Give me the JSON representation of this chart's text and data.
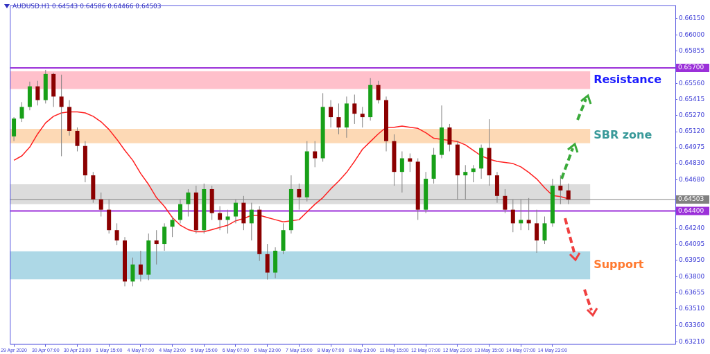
{
  "chart_data": {
    "type": "candlestick",
    "title": "AUDUSD.H1  0.64543 0.64586 0.64466 0.64503",
    "categories": [
      "29 Apr 2020",
      null,
      null,
      null,
      "30 Apr 07:00",
      null,
      null,
      null,
      "30 Apr 23:00",
      null,
      null,
      null,
      "1 May 15:00",
      null,
      null,
      null,
      "4 May 07:00",
      null,
      null,
      null,
      "4 May 23:00",
      null,
      null,
      null,
      "5 May 15:00",
      null,
      null,
      null,
      "6 May 07:00",
      null,
      null,
      null,
      "6 May 23:00",
      null,
      null,
      null,
      "7 May 15:00",
      null,
      null,
      null,
      "8 May 07:00",
      null,
      null,
      null,
      "8 May 23:00",
      null,
      null,
      null,
      "11 May 15:00",
      null,
      null,
      null,
      "12 May 07:00",
      null,
      null,
      null,
      "12 May 23:00",
      null,
      null,
      null,
      "13 May 15:00",
      null,
      null,
      null,
      "14 May 07:00",
      null,
      null,
      null,
      "14 May 23:00",
      null,
      null,
      null,
      null,
      null,
      null,
      null,
      null,
      null,
      null,
      null,
      null,
      null,
      null,
      null
    ],
    "ohlc": [
      [
        0.65077,
        0.65252,
        0.65034,
        0.65239
      ],
      [
        0.65239,
        0.65389,
        0.65208,
        0.65345
      ],
      [
        0.65345,
        0.65575,
        0.65314,
        0.65532
      ],
      [
        0.65532,
        0.65582,
        0.65358,
        0.65407
      ],
      [
        0.65407,
        0.65681,
        0.65376,
        0.65644
      ],
      [
        0.65644,
        0.65656,
        0.65345,
        0.65439
      ],
      [
        0.65439,
        0.65638,
        0.64897,
        0.65345
      ],
      [
        0.65345,
        0.65407,
        0.65084,
        0.65127
      ],
      [
        0.65127,
        0.65158,
        0.64941,
        0.6499
      ],
      [
        0.6499,
        0.65034,
        0.6466,
        0.64723
      ],
      [
        0.64723,
        0.64754,
        0.64474,
        0.64505
      ],
      [
        0.64505,
        0.64567,
        0.64349,
        0.64411
      ],
      [
        0.64411,
        0.64505,
        0.64194,
        0.64225
      ],
      [
        0.64225,
        0.64287,
        0.64088,
        0.64131
      ],
      [
        0.64131,
        0.64162,
        0.63714,
        0.63758
      ],
      [
        0.63758,
        0.63976,
        0.63714,
        0.63913
      ],
      [
        0.63913,
        0.64038,
        0.63758,
        0.6382
      ],
      [
        0.6382,
        0.64194,
        0.6377,
        0.64131
      ],
      [
        0.64131,
        0.64225,
        0.63913,
        0.641
      ],
      [
        0.641,
        0.64287,
        0.64038,
        0.64256
      ],
      [
        0.64256,
        0.64349,
        0.64162,
        0.64318
      ],
      [
        0.64318,
        0.64505,
        0.64287,
        0.64461
      ],
      [
        0.64461,
        0.64598,
        0.64349,
        0.64567
      ],
      [
        0.64567,
        0.64629,
        0.64194,
        0.64225
      ],
      [
        0.64225,
        0.64648,
        0.64194,
        0.64598
      ],
      [
        0.64598,
        0.64629,
        0.64318,
        0.6438
      ],
      [
        0.6438,
        0.64443,
        0.64225,
        0.64318
      ],
      [
        0.64318,
        0.64411,
        0.64194,
        0.64349
      ],
      [
        0.64349,
        0.64505,
        0.64287,
        0.64474
      ],
      [
        0.64474,
        0.64536,
        0.64225,
        0.64287
      ],
      [
        0.64287,
        0.64474,
        0.64131,
        0.64411
      ],
      [
        0.64411,
        0.64443,
        0.63945,
        0.64007
      ],
      [
        0.64007,
        0.641,
        0.63776,
        0.63839
      ],
      [
        0.63839,
        0.64069,
        0.63789,
        0.64038
      ],
      [
        0.64038,
        0.64287,
        0.64007,
        0.64225
      ],
      [
        0.64225,
        0.64723,
        0.64194,
        0.64598
      ],
      [
        0.64598,
        0.64648,
        0.64411,
        0.64523
      ],
      [
        0.64523,
        0.65034,
        0.64486,
        0.64941
      ],
      [
        0.64941,
        0.65034,
        0.64797,
        0.64878
      ],
      [
        0.64878,
        0.6547,
        0.64847,
        0.65345
      ],
      [
        0.65345,
        0.65407,
        0.65158,
        0.65252
      ],
      [
        0.65252,
        0.65376,
        0.65096,
        0.65158
      ],
      [
        0.65158,
        0.65439,
        0.65065,
        0.65376
      ],
      [
        0.65376,
        0.65457,
        0.6519,
        0.65283
      ],
      [
        0.65283,
        0.65345,
        0.65158,
        0.65252
      ],
      [
        0.65252,
        0.65607,
        0.65221,
        0.65544
      ],
      [
        0.65544,
        0.65582,
        0.65376,
        0.65407
      ],
      [
        0.65407,
        0.65439,
        0.64941,
        0.65034
      ],
      [
        0.65034,
        0.65096,
        0.64629,
        0.64754
      ],
      [
        0.64754,
        0.64941,
        0.64567,
        0.64878
      ],
      [
        0.64878,
        0.64922,
        0.64754,
        0.64847
      ],
      [
        0.64847,
        0.64878,
        0.64318,
        0.64411
      ],
      [
        0.64411,
        0.64754,
        0.6438,
        0.64692
      ],
      [
        0.64692,
        0.64972,
        0.64648,
        0.64909
      ],
      [
        0.64909,
        0.65358,
        0.64878,
        0.65158
      ],
      [
        0.65158,
        0.6519,
        0.64941,
        0.65003
      ],
      [
        0.65003,
        0.65034,
        0.64505,
        0.64723
      ],
      [
        0.64723,
        0.64816,
        0.64505,
        0.64754
      ],
      [
        0.64754,
        0.64816,
        0.6466,
        0.64785
      ],
      [
        0.64785,
        0.65003,
        0.64692,
        0.64972
      ],
      [
        0.64972,
        0.65233,
        0.64629,
        0.64723
      ],
      [
        0.64723,
        0.64754,
        0.64474,
        0.64536
      ],
      [
        0.64536,
        0.64598,
        0.6438,
        0.64411
      ],
      [
        0.64411,
        0.64505,
        0.64206,
        0.64287
      ],
      [
        0.64287,
        0.64505,
        0.64225,
        0.64318
      ],
      [
        0.64318,
        0.64517,
        0.64225,
        0.64287
      ],
      [
        0.64287,
        0.64411,
        0.64019,
        0.64131
      ],
      [
        0.64131,
        0.64349,
        0.641,
        0.64287
      ],
      [
        0.64287,
        0.64692,
        0.64256,
        0.64629
      ],
      [
        0.64629,
        0.64723,
        0.64461,
        0.64586
      ],
      [
        0.64586,
        0.64648,
        0.64461,
        0.64503
      ],
      null,
      null,
      null,
      null,
      null,
      null,
      null,
      null,
      null,
      null,
      null,
      null,
      null
    ],
    "colors": [
      "#18a018",
      "#18a018",
      "#18a018",
      "#8b0000",
      "#18a018",
      "#8b0000",
      "#8b0000",
      "#8b0000",
      "#8b0000",
      "#8b0000",
      "#8b0000",
      "#8b0000",
      "#8b0000",
      "#8b0000",
      "#8b0000",
      "#18a018",
      "#8b0000",
      "#18a018",
      "#8b0000",
      "#18a018",
      "#18a018",
      "#18a018",
      "#18a018",
      "#8b0000",
      "#18a018",
      "#8b0000",
      "#8b0000",
      "#18a018",
      "#18a018",
      "#8b0000",
      "#18a018",
      "#8b0000",
      "#8b0000",
      "#18a018",
      "#18a018",
      "#18a018",
      "#8b0000",
      "#18a018",
      "#8b0000",
      "#18a018",
      "#8b0000",
      "#8b0000",
      "#18a018",
      "#8b0000",
      "#8b0000",
      "#18a018",
      "#8b0000",
      "#8b0000",
      "#8b0000",
      "#18a018",
      "#8b0000",
      "#8b0000",
      "#18a018",
      "#18a018",
      "#18a018",
      "#8b0000",
      "#8b0000",
      "#18a018",
      "#18a018",
      "#18a018",
      "#8b0000",
      "#8b0000",
      "#8b0000",
      "#8b0000",
      "#18a018",
      "#8b0000",
      "#8b0000",
      "#18a018",
      "#18a018",
      "#8b0000",
      "#8b0000",
      null,
      null,
      null,
      null,
      null,
      null,
      null,
      null,
      null,
      null,
      null,
      null,
      null
    ],
    "series": [
      {
        "type": "line",
        "color": "#ff2020",
        "values": [
          0.6486,
          0.649,
          0.6498,
          0.651,
          0.652,
          0.6526,
          0.6529,
          0.653,
          0.653,
          0.6529,
          0.6526,
          0.6521,
          0.6514,
          0.6505,
          0.6495,
          0.6486,
          0.6474,
          0.6464,
          0.6452,
          0.6444,
          0.6434,
          0.6427,
          0.6423,
          0.6421,
          0.6421,
          0.6423,
          0.6425,
          0.6427,
          0.6431,
          0.6433,
          0.6436,
          0.6436,
          0.6434,
          0.6432,
          0.643,
          0.6431,
          0.6432,
          0.6439,
          0.6446,
          0.6452,
          0.646,
          0.6467,
          0.6475,
          0.6485,
          0.6496,
          0.6503,
          0.651,
          0.6516,
          0.6516,
          0.6517,
          0.6516,
          0.6515,
          0.6511,
          0.6506,
          0.6505,
          0.6504,
          0.6503,
          0.65,
          0.6495,
          0.649,
          0.6487,
          0.6485,
          0.6484,
          0.6483,
          0.648,
          0.6475,
          0.6469,
          0.6461,
          0.6454,
          0.6453,
          0.6451,
          null,
          null,
          null,
          null,
          null,
          null,
          null,
          null,
          null,
          null,
          null,
          null,
          null
        ]
      }
    ],
    "ylim": [
      0.6319,
      0.6627
    ],
    "yticks": [
      {
        "value": 0.6615,
        "label": "0.66150"
      },
      {
        "value": 0.66,
        "label": "0.66000"
      },
      {
        "value": 0.65855,
        "label": "0.65855"
      },
      {
        "value": 0.6556,
        "label": "0.65560"
      },
      {
        "value": 0.65415,
        "label": "0.65415"
      },
      {
        "value": 0.6527,
        "label": "0.65270"
      },
      {
        "value": 0.6512,
        "label": "0.65120"
      },
      {
        "value": 0.64975,
        "label": "0.64975"
      },
      {
        "value": 0.6483,
        "label": "0.64830"
      },
      {
        "value": 0.6468,
        "label": "0.64680"
      },
      {
        "value": 0.6424,
        "label": "0.64240"
      },
      {
        "value": 0.64095,
        "label": "0.64095"
      },
      {
        "value": 0.6395,
        "label": "0.63950"
      },
      {
        "value": 0.638,
        "label": "0.63800"
      },
      {
        "value": 0.63655,
        "label": "0.63655"
      },
      {
        "value": 0.6351,
        "label": "0.63510"
      },
      {
        "value": 0.6336,
        "label": "0.63360"
      },
      {
        "value": 0.6321,
        "label": "0.63210"
      }
    ],
    "bands": [
      {
        "axis": "y",
        "from": 0.65507,
        "to": 0.65669,
        "label": "Resistance",
        "color": "#ffc0cb"
      },
      {
        "axis": "y",
        "from": 0.65015,
        "to": 0.65146,
        "label": "SBR zone",
        "color": "#fdd9b5"
      },
      {
        "axis": "y",
        "from": 0.64461,
        "to": 0.64642,
        "label": null,
        "color": "#dcdcdc"
      },
      {
        "axis": "y",
        "from": 0.63777,
        "to": 0.64032,
        "label": "Support",
        "color": "#add8e6"
      }
    ],
    "ref_lines": [
      {
        "axis": "y",
        "value": 0.657,
        "label": "0.65700",
        "color": "#9b30d9"
      },
      {
        "axis": "y",
        "value": 0.644,
        "label": "0.64400",
        "color": "#9b30d9"
      },
      {
        "axis": "y",
        "value": 0.64503,
        "label": "0.64503",
        "color": "#808080"
      }
    ]
  }
}
